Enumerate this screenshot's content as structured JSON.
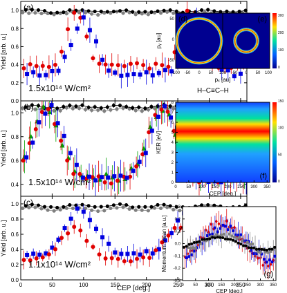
{
  "chart_data": [
    {
      "id": "a",
      "type": "scatter",
      "panel_label": "(a)",
      "annotation": "1.5x10¹⁴ W/cm²",
      "molecule_label": "H–C≡C–H",
      "ylabel": "Yield [arb. u.]",
      "xlim": [
        0,
        360
      ],
      "ylim": [
        0,
        1.1
      ],
      "yticks": [
        "0.0",
        "0.2",
        "0.4",
        "0.6",
        "0.8",
        "1.0"
      ],
      "series": [
        {
          "color": "#808080",
          "marker": "circle",
          "shape": "flat",
          "base": 0.97,
          "amp": 0.01,
          "c1": 95,
          "c2": 275,
          "w": 0,
          "x0": 3,
          "dx": 10
        },
        {
          "color": "#000000",
          "marker": "circle",
          "shape": "flat",
          "base": 0.99,
          "amp": 0.01,
          "c1": 95,
          "c2": 275,
          "w": 0,
          "x0": 8,
          "dx": 10
        },
        {
          "color": "#e00000",
          "marker": "circle",
          "shape": "peak",
          "base": 0.38,
          "amp": 0.62,
          "c1": 88,
          "c2": 270,
          "w": 20,
          "x0": 5,
          "dx": 10
        },
        {
          "color": "#0000e0",
          "marker": "square",
          "shape": "peak",
          "base": 0.3,
          "amp": 0.6,
          "c1": 100,
          "c2": 282,
          "w": 26,
          "x0": 10,
          "dx": 10
        }
      ]
    },
    {
      "id": "b",
      "type": "scatter",
      "panel_label": "(b)",
      "annotation": "1.5x10¹⁴ W/cm²",
      "ylabel": "Yield [arb. u.]",
      "xlim": [
        0,
        360
      ],
      "ylim": [
        0.3,
        1.1
      ],
      "yticks": [
        "0.4",
        "0.6",
        "0.8",
        "1.0"
      ],
      "series": [
        {
          "color": "#808080",
          "marker": "circle",
          "shape": "flat",
          "base": 1.03,
          "amp": 0.01,
          "c1": 90,
          "c2": 270,
          "w": 0,
          "x0": 3,
          "dx": 10
        },
        {
          "color": "#000000",
          "marker": "circle",
          "shape": "flat",
          "base": 1.05,
          "amp": 0.01,
          "c1": 90,
          "c2": 270,
          "w": 0,
          "x0": 8,
          "dx": 10
        },
        {
          "color": "#00a000",
          "marker": "triangle",
          "shape": "peak",
          "base": 0.46,
          "amp": 0.58,
          "c1": 40,
          "c2": 225,
          "w": 32,
          "x0": 6,
          "dx": 10
        },
        {
          "color": "#e00000",
          "marker": "circle",
          "shape": "peak",
          "base": 0.43,
          "amp": 0.6,
          "c1": 40,
          "c2": 225,
          "w": 32,
          "x0": 4,
          "dx": 10
        },
        {
          "color": "#0000e0",
          "marker": "square",
          "shape": "peak",
          "base": 0.44,
          "amp": 0.6,
          "c1": 45,
          "c2": 230,
          "w": 32,
          "x0": 9,
          "dx": 10
        }
      ]
    },
    {
      "id": "c",
      "type": "scatter",
      "panel_label": "(c)",
      "annotation": "1.1x10¹⁴ W/cm²",
      "ylabel": "Yield [arb. u.]",
      "xlabel": "CEP [deg.]",
      "xlim": [
        0,
        360
      ],
      "ylim": [
        0,
        1.1
      ],
      "xticks": [
        "0",
        "50",
        "100",
        "150",
        "200",
        "250",
        "300",
        "350"
      ],
      "yticks": [
        "0.0",
        "0.2",
        "0.4",
        "0.6",
        "0.8",
        "1.0"
      ],
      "series": [
        {
          "color": "#808080",
          "marker": "circle",
          "shape": "flat",
          "base": 0.93,
          "amp": 0.02,
          "c1": 90,
          "c2": 270,
          "w": 0,
          "x0": 3,
          "dx": 10
        },
        {
          "color": "#000000",
          "marker": "circle",
          "shape": "flat",
          "base": 0.97,
          "amp": 0.02,
          "c1": 90,
          "c2": 270,
          "w": 0,
          "x0": 8,
          "dx": 10
        },
        {
          "color": "#0000e0",
          "marker": "square",
          "shape": "peak",
          "base": 0.34,
          "amp": 0.58,
          "c1": 95,
          "c2": 268,
          "w": 34,
          "x0": 10,
          "dx": 10
        },
        {
          "color": "#e00000",
          "marker": "circle",
          "shape": "peak",
          "base": 0.26,
          "amp": 0.42,
          "c1": 85,
          "c2": 250,
          "w": 30,
          "x0": 5,
          "dx": 10
        }
      ]
    },
    {
      "id": "de",
      "type": "heatmap",
      "panel_labels": [
        "(d)",
        "(e)"
      ],
      "xlabel": "pₓ [au]",
      "ylabel": "pᵧ [au]",
      "xticks": [
        "-100",
        "-50",
        "0",
        "50",
        "100",
        "-50",
        "0",
        "50",
        "100"
      ],
      "yticks": [
        "-50",
        "0",
        "50"
      ],
      "colorbar_ticks": [
        "0",
        "100",
        "200",
        "300"
      ],
      "rings_d": [
        0.85,
        0.94
      ],
      "rings_e": [
        0.36,
        0.46
      ]
    },
    {
      "id": "f",
      "type": "heatmap",
      "panel_label": "(f)",
      "xlabel": "CEP [deg.]",
      "ylabel": "KER [eV]",
      "xlim": [
        0,
        360
      ],
      "ylim": [
        0,
        8
      ],
      "xticks": [
        "0",
        "50",
        "100",
        "150",
        "200",
        "250",
        "300",
        "350"
      ],
      "yticks": [
        "0",
        "1",
        "2",
        "3",
        "4",
        "5",
        "6",
        "7",
        "8"
      ],
      "colorbar_ticks": [
        "0",
        "50",
        "100",
        "150"
      ],
      "band_center_eV": 5.1,
      "band_width_eV": 1.6
    },
    {
      "id": "g",
      "type": "scatter",
      "panel_label": "(g)",
      "xlabel": "CEP [deg.]",
      "ylabel": "Momentum mean [a.u.]",
      "xlim": [
        0,
        360
      ],
      "ylim": [
        -0.3,
        0.3
      ],
      "xticks": [
        "0",
        "50",
        "100",
        "150",
        "200",
        "250",
        "300",
        "350"
      ],
      "yticks": [
        "-0.3",
        "-0.2",
        "-0.1",
        "0.0",
        "0.1",
        "0.2",
        "0.3"
      ],
      "series": [
        {
          "color": "#e00000",
          "marker": "diamond",
          "shape": "sine",
          "base": 0.0,
          "amp": 0.17,
          "c1": 60,
          "c2": 0,
          "w": 0,
          "x0": 10,
          "dx": 10
        },
        {
          "color": "#0000e0",
          "marker": "square",
          "shape": "sine",
          "base": 0.0,
          "amp": 0.13,
          "c1": 70,
          "c2": 0,
          "w": 0,
          "x0": 15,
          "dx": 10
        },
        {
          "color": "#808080",
          "marker": "square",
          "shape": "sine",
          "base": 0.0,
          "amp": 0.07,
          "c1": 70,
          "c2": 0,
          "w": 0,
          "x0": 20,
          "dx": 10
        },
        {
          "color": "#000000",
          "marker": "circle",
          "shape": "sine",
          "base": 0.0,
          "amp": 0.05,
          "c1": 40,
          "c2": 0,
          "w": 0,
          "x0": 5,
          "dx": 10
        }
      ]
    }
  ]
}
